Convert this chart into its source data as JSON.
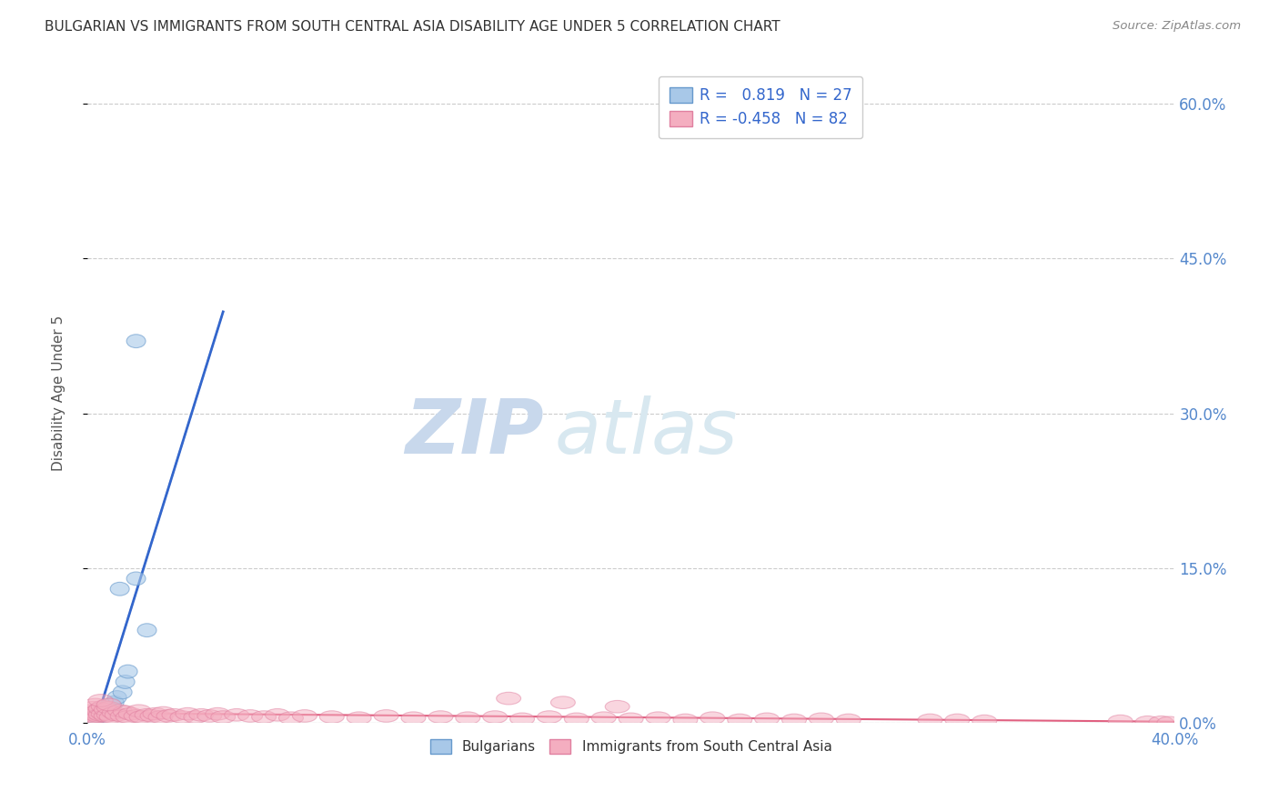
{
  "title": "BULGARIAN VS IMMIGRANTS FROM SOUTH CENTRAL ASIA DISABILITY AGE UNDER 5 CORRELATION CHART",
  "source": "Source: ZipAtlas.com",
  "ylabel": "Disability Age Under 5",
  "blue_R": 0.819,
  "blue_N": 27,
  "pink_R": -0.458,
  "pink_N": 82,
  "blue_color": "#a8c8e8",
  "pink_color": "#f4aec0",
  "blue_edge_color": "#6699cc",
  "pink_edge_color": "#e080a0",
  "blue_line_color": "#3366cc",
  "pink_line_color": "#e06080",
  "blue_dash_color": "#aabbdd",
  "background_color": "#ffffff",
  "grid_color": "#cccccc",
  "title_color": "#333333",
  "axis_color": "#5588cc",
  "watermark_zip_color": "#c8d8ec",
  "watermark_atlas_color": "#d8e8f0",
  "xlim": [
    0.0,
    0.4
  ],
  "ylim": [
    0.0,
    0.64
  ],
  "xticks_show": [
    0.0,
    0.4
  ],
  "yticks": [
    0.0,
    0.15,
    0.3,
    0.45,
    0.6
  ],
  "blue_x": [
    0.001,
    0.001,
    0.0015,
    0.002,
    0.002,
    0.0025,
    0.003,
    0.003,
    0.003,
    0.004,
    0.004,
    0.005,
    0.005,
    0.006,
    0.006,
    0.007,
    0.008,
    0.009,
    0.01,
    0.011,
    0.012,
    0.013,
    0.014,
    0.015,
    0.018,
    0.018,
    0.022
  ],
  "blue_y": [
    0.001,
    0.002,
    0.003,
    0.004,
    0.005,
    0.006,
    0.005,
    0.008,
    0.009,
    0.006,
    0.01,
    0.008,
    0.012,
    0.01,
    0.015,
    0.012,
    0.015,
    0.018,
    0.02,
    0.025,
    0.13,
    0.03,
    0.04,
    0.05,
    0.37,
    0.14,
    0.09
  ],
  "pink_x": [
    0.001,
    0.001,
    0.001,
    0.002,
    0.002,
    0.002,
    0.003,
    0.003,
    0.003,
    0.004,
    0.004,
    0.005,
    0.005,
    0.006,
    0.006,
    0.007,
    0.007,
    0.008,
    0.008,
    0.009,
    0.01,
    0.011,
    0.012,
    0.013,
    0.014,
    0.015,
    0.016,
    0.018,
    0.019,
    0.02,
    0.022,
    0.024,
    0.025,
    0.027,
    0.028,
    0.03,
    0.032,
    0.035,
    0.037,
    0.04,
    0.042,
    0.045,
    0.048,
    0.05,
    0.055,
    0.06,
    0.065,
    0.07,
    0.075,
    0.08,
    0.09,
    0.1,
    0.11,
    0.12,
    0.13,
    0.14,
    0.15,
    0.16,
    0.17,
    0.18,
    0.19,
    0.2,
    0.21,
    0.22,
    0.23,
    0.24,
    0.25,
    0.26,
    0.27,
    0.28,
    0.155,
    0.175,
    0.195,
    0.31,
    0.32,
    0.33,
    0.38,
    0.39,
    0.395,
    0.398,
    0.005,
    0.008
  ],
  "pink_y": [
    0.005,
    0.008,
    0.012,
    0.004,
    0.009,
    0.015,
    0.006,
    0.01,
    0.018,
    0.007,
    0.012,
    0.008,
    0.014,
    0.009,
    0.016,
    0.007,
    0.013,
    0.008,
    0.015,
    0.006,
    0.01,
    0.008,
    0.012,
    0.007,
    0.011,
    0.006,
    0.009,
    0.007,
    0.012,
    0.006,
    0.008,
    0.007,
    0.009,
    0.006,
    0.01,
    0.007,
    0.008,
    0.006,
    0.009,
    0.006,
    0.008,
    0.007,
    0.009,
    0.006,
    0.008,
    0.007,
    0.006,
    0.008,
    0.005,
    0.007,
    0.006,
    0.005,
    0.007,
    0.005,
    0.006,
    0.005,
    0.006,
    0.004,
    0.006,
    0.004,
    0.005,
    0.004,
    0.005,
    0.003,
    0.005,
    0.003,
    0.004,
    0.003,
    0.004,
    0.003,
    0.024,
    0.02,
    0.016,
    0.003,
    0.003,
    0.002,
    0.002,
    0.001,
    0.001,
    0.0005,
    0.022,
    0.018
  ]
}
